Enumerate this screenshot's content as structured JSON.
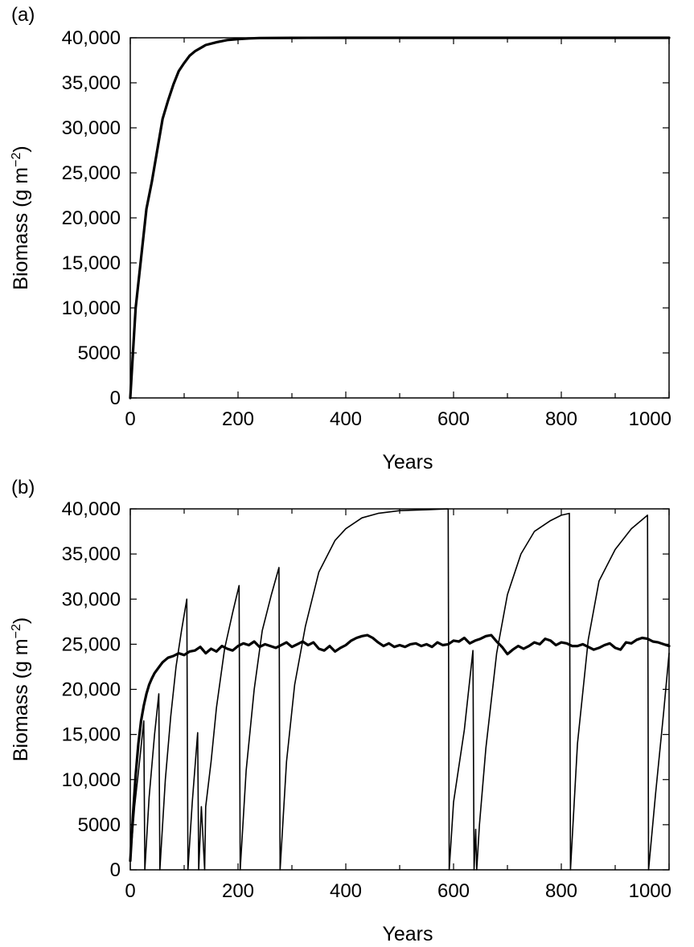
{
  "chart_data": [
    {
      "panel_label": "(a)",
      "type": "line",
      "xlabel": "Years",
      "ylabel": "Biomass (g m",
      "ylabel_sup": "−2",
      "ylabel_close": ")",
      "xlim": [
        0,
        1000
      ],
      "ylim": [
        0,
        40000
      ],
      "xticks": [
        0,
        200,
        400,
        600,
        800,
        1000
      ],
      "xtick_labels": [
        "0",
        "200",
        "400",
        "600",
        "800",
        "1000"
      ],
      "yticks": [
        0,
        5000,
        10000,
        15000,
        20000,
        25000,
        30000,
        35000,
        40000
      ],
      "ytick_labels": [
        "0",
        "5000",
        "10,000",
        "15,000",
        "20,000",
        "25,000",
        "30,000",
        "35,000",
        "40,000"
      ],
      "grid": false,
      "series": [
        {
          "style": "thick",
          "x": [
            0,
            5,
            10,
            20,
            30,
            40,
            50,
            60,
            70,
            80,
            90,
            100,
            110,
            120,
            140,
            160,
            180,
            200,
            220,
            240,
            300,
            400,
            600,
            800,
            1000
          ],
          "y": [
            0,
            5000,
            10000,
            15500,
            21000,
            24000,
            27500,
            31000,
            33000,
            34800,
            36300,
            37200,
            38000,
            38500,
            39200,
            39500,
            39750,
            39850,
            39930,
            39970,
            39995,
            40000,
            40000,
            40000,
            40000
          ]
        }
      ]
    },
    {
      "panel_label": "(b)",
      "type": "line",
      "xlabel": "Years",
      "ylabel": "Biomass (g m",
      "ylabel_sup": "−2",
      "ylabel_close": ")",
      "xlim": [
        0,
        1000
      ],
      "ylim": [
        0,
        40000
      ],
      "xticks": [
        0,
        200,
        400,
        600,
        800,
        1000
      ],
      "xtick_labels": [
        "0",
        "200",
        "400",
        "600",
        "800",
        "1000"
      ],
      "yticks": [
        0,
        5000,
        10000,
        15000,
        20000,
        25000,
        30000,
        35000,
        40000
      ],
      "ytick_labels": [
        "0",
        "5000",
        "10,000",
        "15,000",
        "20,000",
        "25,000",
        "30,000",
        "35,000",
        "40,000"
      ],
      "grid": false,
      "series": [
        {
          "style": "thin",
          "x": [
            0,
            8,
            18,
            25,
            27,
            35,
            45,
            53,
            55,
            65,
            75,
            85,
            95,
            105,
            107,
            115,
            125,
            127,
            132,
            138,
            140,
            150,
            160,
            175,
            190,
            202,
            204,
            215,
            230,
            245,
            262,
            276,
            278,
            290,
            305,
            325,
            350,
            380,
            400,
            430,
            460,
            500,
            550,
            590,
            592,
            600,
            620,
            636,
            638,
            641,
            643,
            648,
            660,
            680,
            700,
            725,
            750,
            780,
            800,
            815,
            817,
            830,
            850,
            870,
            900,
            930,
            960,
            962,
            975,
            990,
            1000
          ],
          "y": [
            1000,
            7000,
            12500,
            16500,
            0,
            8000,
            15000,
            19500,
            0,
            10000,
            17000,
            22500,
            26500,
            30000,
            0,
            7500,
            15200,
            0,
            7000,
            0,
            7000,
            12000,
            18000,
            24500,
            28500,
            31500,
            0,
            11000,
            20000,
            26500,
            30500,
            33500,
            0,
            12000,
            20500,
            27000,
            33000,
            36500,
            37800,
            39000,
            39500,
            39800,
            39900,
            40000,
            0,
            7500,
            15500,
            24300,
            0,
            4500,
            0,
            5000,
            13500,
            24000,
            30500,
            35000,
            37500,
            38700,
            39300,
            39500,
            0,
            14000,
            25500,
            32000,
            35500,
            37800,
            39300,
            0,
            8500,
            17500,
            24000
          ]
        },
        {
          "style": "thick",
          "x": [
            0,
            5,
            10,
            15,
            20,
            25,
            30,
            35,
            40,
            45,
            50,
            55,
            60,
            70,
            80,
            90,
            100,
            110,
            120,
            130,
            140,
            150,
            160,
            170,
            180,
            190,
            200,
            210,
            220,
            230,
            240,
            250,
            260,
            270,
            280,
            290,
            300,
            310,
            320,
            330,
            340,
            350,
            360,
            370,
            380,
            390,
            400,
            410,
            420,
            430,
            440,
            450,
            460,
            470,
            480,
            490,
            500,
            510,
            520,
            530,
            540,
            550,
            560,
            570,
            580,
            590,
            600,
            610,
            620,
            630,
            640,
            650,
            660,
            670,
            680,
            690,
            700,
            710,
            720,
            730,
            740,
            750,
            760,
            770,
            780,
            790,
            800,
            810,
            820,
            830,
            840,
            850,
            860,
            870,
            880,
            890,
            900,
            910,
            920,
            930,
            940,
            950,
            960,
            970,
            980,
            990,
            1000
          ],
          "y": [
            1000,
            6000,
            10500,
            14000,
            16500,
            18200,
            19500,
            20500,
            21200,
            21800,
            22200,
            22600,
            23000,
            23500,
            23700,
            24000,
            23800,
            24200,
            24300,
            24700,
            24000,
            24500,
            24200,
            24800,
            24500,
            24300,
            24800,
            25100,
            24900,
            25300,
            24700,
            25000,
            24800,
            24600,
            24900,
            25200,
            24700,
            25000,
            25300,
            24900,
            25200,
            24500,
            24300,
            24800,
            24200,
            24600,
            24900,
            25400,
            25700,
            25900,
            26000,
            25700,
            25200,
            24800,
            25100,
            24700,
            24900,
            24700,
            25000,
            25100,
            24800,
            25000,
            24700,
            25200,
            24900,
            25000,
            25400,
            25300,
            25700,
            25100,
            25400,
            25600,
            25900,
            26000,
            25300,
            24700,
            23900,
            24400,
            24800,
            24500,
            24800,
            25200,
            25000,
            25600,
            25400,
            24900,
            25200,
            25100,
            24800,
            24800,
            25000,
            24700,
            24400,
            24600,
            24900,
            25100,
            24600,
            24400,
            25200,
            25100,
            25500,
            25700,
            25600,
            25300,
            25200,
            25000,
            24800
          ]
        }
      ]
    }
  ]
}
